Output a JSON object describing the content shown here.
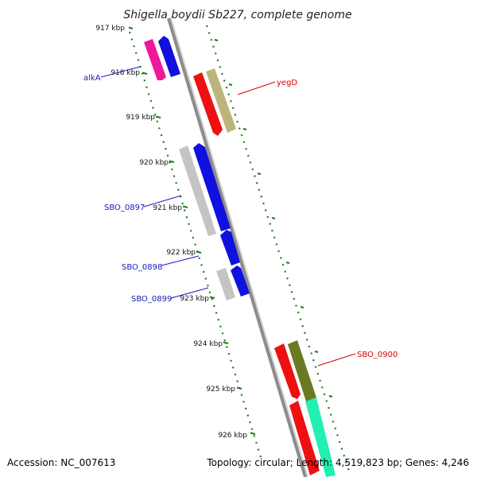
{
  "title": "Shigella boydii Sb227, complete genome",
  "footer": {
    "accession": "Accession: NC_007613",
    "summary": "Topology: circular; Length: 4,519,823 bp; Genes: 4,246"
  },
  "ticks": [
    "917 kbp",
    "918 kbp",
    "919 kbp",
    "920 kbp",
    "921 kbp",
    "922 kbp",
    "923 kbp",
    "924 kbp",
    "925 kbp",
    "926 kbp"
  ],
  "gene_labels": {
    "alkA": "alkA",
    "yegD": "yegD",
    "SBO_0897": "SBO_0897",
    "SBO_0898": "SBO_0898",
    "SBO_0899": "SBO_0899",
    "SBO_0900": "SBO_0900"
  },
  "colors": {
    "backbone": "#8c8c8c",
    "tick_green": "#1f7a1f",
    "label_blue": "#1a1ab8",
    "label_red": "#d40000",
    "cds_blue": "#1010e0",
    "cds_red": "#ee1010",
    "cds_grey": "#c4c4c4",
    "cds_magenta": "#f0189a",
    "cds_khaki": "#bdb47a",
    "cds_olive": "#6b7a22",
    "cds_aqua": "#22f0b0"
  }
}
